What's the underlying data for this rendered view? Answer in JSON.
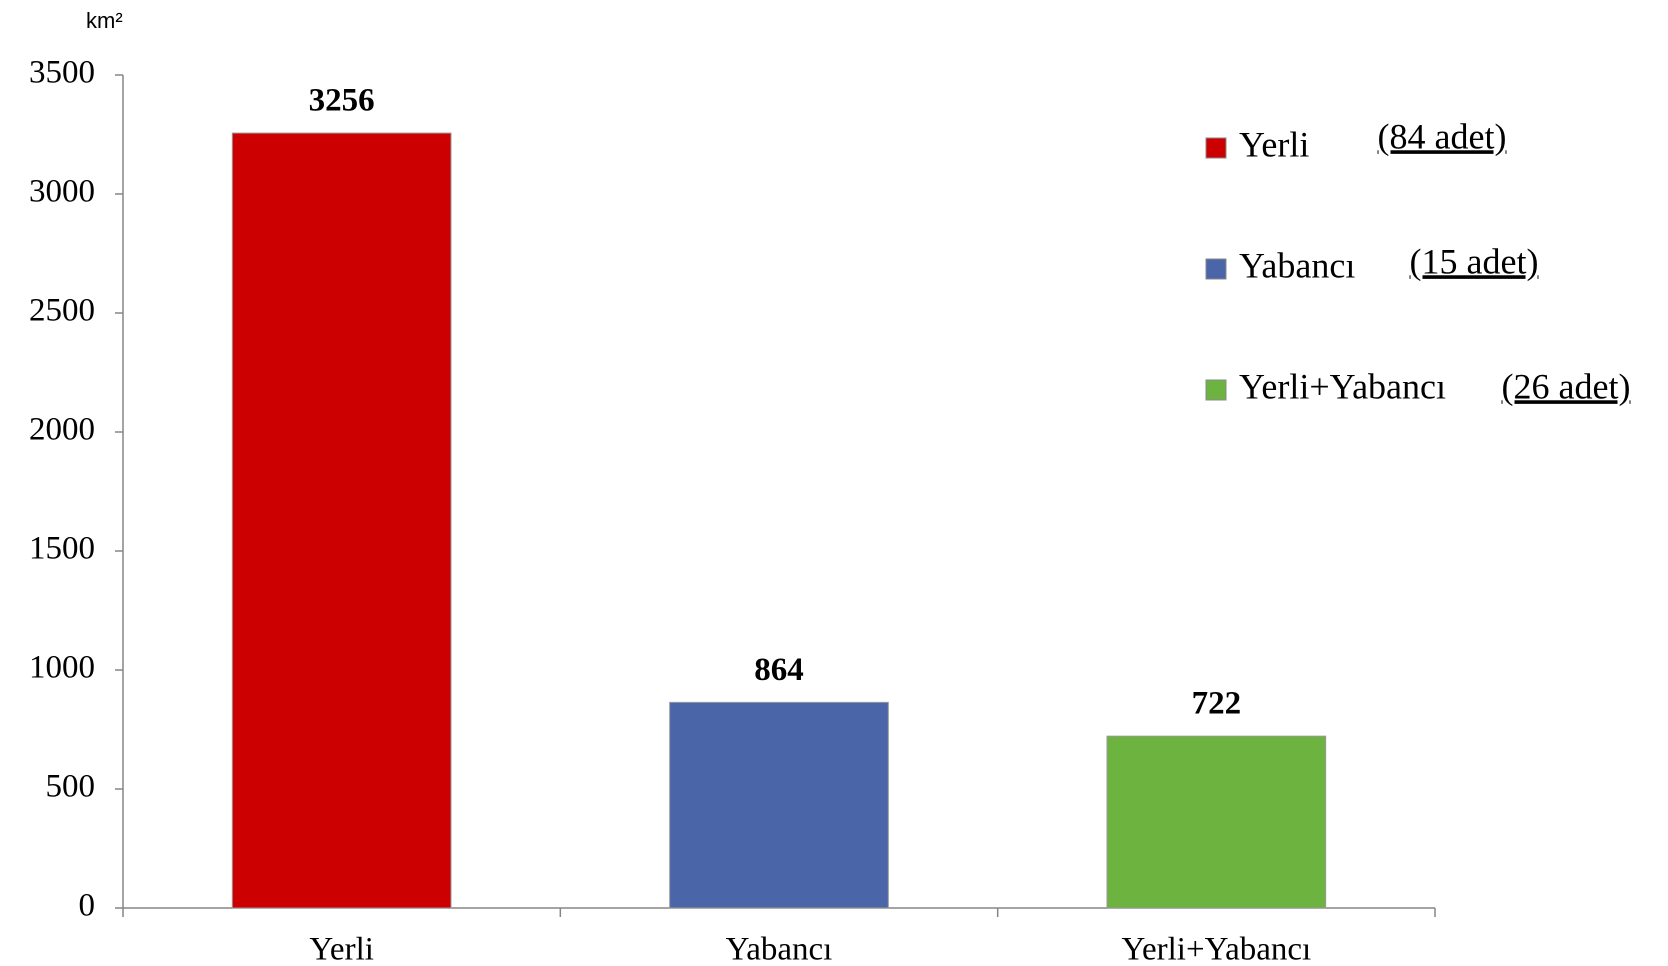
{
  "chart_data": {
    "type": "bar",
    "y_label": "km²",
    "categories": [
      "Yerli",
      "Yabancı",
      "Yerli+Yabancı"
    ],
    "values": [
      3256,
      864,
      722
    ],
    "colors": [
      "#cc0000",
      "#4a66a8",
      "#6db33f"
    ],
    "legend_notes": [
      "(84 adet)",
      "(15 adet)",
      "(26 adet)"
    ],
    "ylim": [
      0,
      3500
    ],
    "yticks": [
      0,
      500,
      1000,
      1500,
      2000,
      2500,
      3000,
      3500
    ],
    "grid": false,
    "legend": "right"
  }
}
